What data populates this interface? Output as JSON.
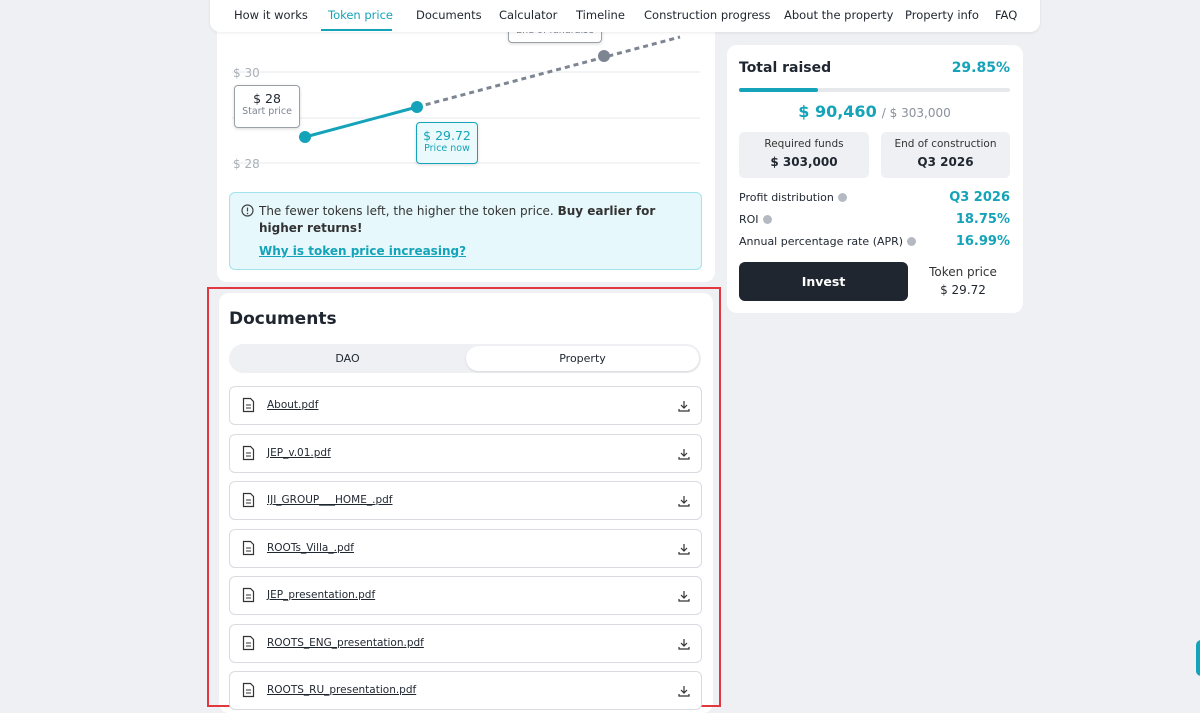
{
  "nav": [
    "How it works",
    "Token price",
    "Documents",
    "Calculator",
    "Timeline",
    "Construction progress",
    "About the property",
    "Property info",
    "FAQ"
  ],
  "token_chart": {
    "y_labels": [
      "$ 30",
      "$ 28"
    ],
    "start_price": "$ 28",
    "start_label": "Start price",
    "now_price": "$ 29.72",
    "now_label": "Price now",
    "end_label": "End of fundraise"
  },
  "notice": {
    "text": "The fewer tokens left, the higher the token price.",
    "bold": "Buy earlier for higher returns!",
    "link": "Why is token price increasing?"
  },
  "documents": {
    "title": "Documents",
    "tabs": [
      "DAO",
      "Property"
    ],
    "files": [
      "About.pdf",
      "JEP_v.01.pdf",
      "IJI_GROUP___HOME_.pdf",
      "ROOTs_Villa_.pdf",
      "JEP_presentation.pdf",
      "ROOTS_ENG_presentation.pdf",
      "ROOTS_RU_presentation.pdf"
    ]
  },
  "summary": {
    "title": "Total raised",
    "percent": "29.85%",
    "raised": "$ 90,460",
    "goal": "/ $ 303,000",
    "required_label": "Required funds",
    "required_value": "$ 303,000",
    "end_label": "End of construction",
    "end_value": "Q3 2026",
    "rows": [
      {
        "label": "Profit distribution",
        "value": "Q3 2026"
      },
      {
        "label": "ROI",
        "value": "18.75%"
      },
      {
        "label": "Annual percentage rate (APR)",
        "value": "16.99%"
      }
    ],
    "invest": "Invest",
    "token_price_label": "Token price",
    "token_price_value": "$ 29.72"
  }
}
